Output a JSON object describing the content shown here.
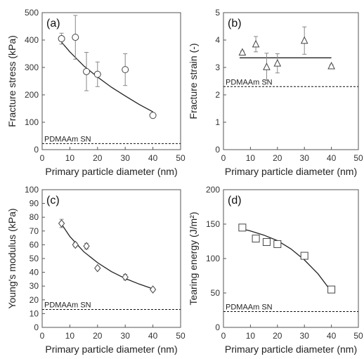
{
  "chart_data": [
    {
      "type": "scatter",
      "panel_label": "(a)",
      "xlabel": "Primary particle diameter (nm)",
      "ylabel": "Fracture stress (kPa)",
      "xlim": [
        0,
        50
      ],
      "ylim": [
        0,
        500
      ],
      "xticks": [
        "0",
        "10",
        "20",
        "30",
        "40",
        "50"
      ],
      "yticks": [
        "0",
        "100",
        "200",
        "300",
        "400",
        "500"
      ],
      "marker": "circle",
      "x": [
        7,
        12,
        16,
        20,
        30,
        40
      ],
      "y": [
        405,
        410,
        285,
        275,
        292,
        125
      ],
      "yerr": [
        20,
        80,
        70,
        45,
        58,
        8
      ],
      "fit": [
        [
          7,
          392
        ],
        [
          10,
          357
        ],
        [
          15,
          306
        ],
        [
          20,
          265
        ],
        [
          25,
          228
        ],
        [
          30,
          196
        ],
        [
          35,
          165
        ],
        [
          40,
          138
        ]
      ],
      "reference": {
        "label": "PDMAAm SN",
        "value": 22
      }
    },
    {
      "type": "scatter",
      "panel_label": "(b)",
      "xlabel": "Primary particle diameter (nm)",
      "ylabel": "Fracture strain (-)",
      "xlim": [
        0,
        50
      ],
      "ylim": [
        0,
        5
      ],
      "xticks": [
        "0",
        "10",
        "20",
        "30",
        "40",
        "50"
      ],
      "yticks": [
        "0",
        "1",
        "2",
        "3",
        "4",
        "5"
      ],
      "marker": "triangle",
      "x": [
        7,
        12,
        16,
        20,
        30,
        40
      ],
      "y": [
        3.55,
        3.85,
        3.02,
        3.15,
        3.98,
        3.05
      ],
      "yerr": [
        0.05,
        0.28,
        0.5,
        0.35,
        0.5,
        0.05
      ],
      "fit": [
        [
          6,
          3.35
        ],
        [
          40,
          3.35
        ]
      ],
      "reference": {
        "label": "PDMAAm SN",
        "value": 2.3
      }
    },
    {
      "type": "scatter",
      "panel_label": "(c)",
      "xlabel": "Primary particle diameter (nm)",
      "ylabel": "Young's modulus (kPa)",
      "xlim": [
        0,
        50
      ],
      "ylim": [
        0,
        100
      ],
      "xticks": [
        "0",
        "10",
        "20",
        "30",
        "40",
        "50"
      ],
      "yticks": [
        "0",
        "10",
        "20",
        "30",
        "40",
        "50",
        "60",
        "70",
        "80",
        "90",
        "100"
      ],
      "marker": "diamond",
      "x": [
        7,
        12,
        16,
        20,
        30,
        40
      ],
      "y": [
        75.5,
        60,
        59,
        43,
        36.5,
        27.5
      ],
      "yerr": [
        3,
        1.5,
        2,
        1,
        2,
        1
      ],
      "fit": [
        [
          7,
          75
        ],
        [
          10,
          66
        ],
        [
          15,
          55
        ],
        [
          20,
          47
        ],
        [
          25,
          40.5
        ],
        [
          30,
          35.5
        ],
        [
          35,
          31.5
        ],
        [
          40,
          28
        ]
      ],
      "reference": {
        "label": "PDMAAm SN",
        "value": 13
      }
    },
    {
      "type": "scatter",
      "panel_label": "(d)",
      "xlabel": "Primary particle diameter (nm)",
      "ylabel": "Tearing energy (J/m²)",
      "xlim": [
        0,
        50
      ],
      "ylim": [
        0,
        200
      ],
      "xticks": [
        "0",
        "10",
        "20",
        "30",
        "40",
        "50"
      ],
      "yticks": [
        "0",
        "50",
        "100",
        "150",
        "200"
      ],
      "marker": "square",
      "x": [
        7,
        12,
        16,
        20,
        30,
        40
      ],
      "y": [
        145,
        129,
        124,
        121,
        104,
        55
      ],
      "yerr": [
        0,
        0,
        0,
        0,
        0,
        0
      ],
      "fit": [
        [
          7,
          143
        ],
        [
          10,
          140
        ],
        [
          15,
          134
        ],
        [
          20,
          126
        ],
        [
          25,
          114
        ],
        [
          30,
          98
        ],
        [
          35,
          78
        ],
        [
          40,
          52
        ]
      ],
      "reference": {
        "label": "PDMAAm SN",
        "value": 23
      }
    }
  ]
}
